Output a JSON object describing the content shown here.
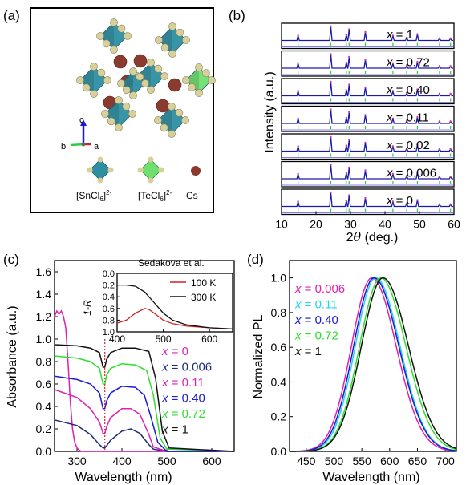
{
  "panels": {
    "a": {
      "label": "(a)",
      "axes": {
        "c": "c",
        "b": "b",
        "a": "a"
      },
      "legend": [
        {
          "label_main": "[SnCl",
          "sub": "6",
          "sup": "2-"
        },
        {
          "label_main": "[TeCl",
          "sub": "6",
          "sup": "2-"
        },
        {
          "label_main": "Cs"
        }
      ],
      "colors": {
        "sn_octahedron": "#2e8fa3",
        "te_octahedron": "#6fe06f",
        "cs": "#8a3a2e",
        "cl": "#d8d09a"
      }
    },
    "b": {
      "label": "(b)",
      "ylabel": "Intensity (a.u.)",
      "xlabel_theta": "θ",
      "xlabel_prefix": "2",
      "xlabel_suffix": " (deg.)"
    },
    "c": {
      "label": "(c)",
      "ylabel": "Absorbance (a.u.)",
      "xlabel": "Wavelength (nm)",
      "inset": {
        "title": "Sedakova et al.",
        "ylabel": "1-R",
        "legend": [
          {
            "label": "100 K",
            "color": "#d62020"
          },
          {
            "label": "300 K",
            "color": "#111111"
          }
        ]
      }
    },
    "d": {
      "label": "(d)",
      "ylabel": "Normalized PL",
      "xlabel": "Wavelength (nm)"
    }
  },
  "chart_data": [
    {
      "panel": "b",
      "type": "line",
      "xlim": [
        10,
        60
      ],
      "xticks": [
        "10",
        "20",
        "30",
        "40",
        "50",
        "60"
      ],
      "series": [
        {
          "name": "x = 1",
          "label_prefix": "x",
          "label_value": " = 1"
        },
        {
          "name": "x = 0.72",
          "label_prefix": "x",
          "label_value": " = 0.72"
        },
        {
          "name": "x = 0.40",
          "label_prefix": "x",
          "label_value": " = 0.40"
        },
        {
          "name": "x = 0.11",
          "label_prefix": "x",
          "label_value": " = 0.11"
        },
        {
          "name": "x = 0.02",
          "label_prefix": "x",
          "label_value": " = 0.02"
        },
        {
          "name": "x = 0.006",
          "label_prefix": "x",
          "label_value": " = 0.006"
        },
        {
          "name": "x = 0",
          "label_prefix": "x",
          "label_value": " = 0"
        }
      ],
      "peaks_2theta": [
        14.8,
        24.3,
        28.8,
        29.6,
        34.3,
        42.3,
        46.3,
        49.4,
        55.8,
        59.0
      ],
      "peak_heights": [
        0.35,
        1.0,
        0.4,
        0.8,
        0.6,
        0.35,
        0.2,
        0.45,
        0.15,
        0.15
      ],
      "colors": {
        "observed": "#d43aa0",
        "calculated": "#1a1aa8",
        "ticks": "#2ecc40",
        "baseline": "#5555dd"
      }
    },
    {
      "panel": "c",
      "type": "line",
      "xlim": [
        250,
        650
      ],
      "ylim": [
        0,
        1.7
      ],
      "xticks": [
        "300",
        "400",
        "500",
        "600"
      ],
      "yticks": [
        "0.0",
        "0.2",
        "0.4",
        "0.6",
        "0.8",
        "1.0",
        "1.2",
        "1.4",
        "1.6"
      ],
      "series": [
        {
          "name": "x = 0",
          "label_prefix": "x",
          "label_value": " = 0",
          "color": "#e020b0",
          "x": [
            250,
            255,
            260,
            265,
            270,
            275,
            280,
            285,
            290,
            295,
            300,
            305,
            310,
            650
          ],
          "y": [
            1.2,
            1.25,
            1.22,
            1.25,
            1.2,
            1.1,
            0.8,
            0.45,
            0.2,
            0.08,
            0.03,
            0.01,
            0.0,
            0.0
          ]
        },
        {
          "name": "x = 0.006",
          "label_prefix": "x",
          "label_value": " = 0.006",
          "color": "#1c2a7a",
          "x": [
            250,
            300,
            330,
            350,
            358,
            362,
            366,
            375,
            400,
            420,
            440,
            460,
            470,
            500,
            650
          ],
          "y": [
            0.28,
            0.23,
            0.15,
            0.06,
            0.03,
            0.03,
            0.05,
            0.1,
            0.18,
            0.2,
            0.16,
            0.06,
            0.02,
            0.0,
            0.0
          ]
        },
        {
          "name": "x = 0.11",
          "label_prefix": "x",
          "label_value": " = 0.11",
          "color": "#e020b0",
          "x": [
            250,
            300,
            330,
            350,
            358,
            362,
            366,
            375,
            400,
            420,
            440,
            460,
            470,
            500,
            650
          ],
          "y": [
            0.55,
            0.48,
            0.38,
            0.26,
            0.16,
            0.16,
            0.22,
            0.3,
            0.38,
            0.38,
            0.33,
            0.15,
            0.04,
            0.0,
            0.0
          ]
        },
        {
          "name": "x = 0.40",
          "label_prefix": "x",
          "label_value": " = 0.40",
          "color": "#1a1ad8",
          "x": [
            250,
            300,
            330,
            350,
            358,
            362,
            366,
            375,
            400,
            430,
            450,
            465,
            480,
            500,
            650
          ],
          "y": [
            0.67,
            0.64,
            0.6,
            0.52,
            0.38,
            0.38,
            0.45,
            0.52,
            0.58,
            0.57,
            0.5,
            0.3,
            0.08,
            0.0,
            0.0
          ]
        },
        {
          "name": "x = 0.72",
          "label_prefix": "x",
          "label_value": " = 0.72",
          "color": "#2ee02e",
          "x": [
            250,
            300,
            330,
            350,
            358,
            362,
            366,
            375,
            400,
            430,
            455,
            470,
            485,
            500,
            650
          ],
          "y": [
            0.85,
            0.83,
            0.8,
            0.74,
            0.6,
            0.6,
            0.68,
            0.74,
            0.78,
            0.77,
            0.72,
            0.5,
            0.12,
            0.02,
            0.0
          ]
        },
        {
          "name": "x = 1",
          "label_prefix": "x",
          "label_value": " = 1",
          "color": "#111111",
          "x": [
            250,
            300,
            330,
            350,
            358,
            362,
            366,
            375,
            400,
            430,
            460,
            475,
            490,
            505,
            650
          ],
          "y": [
            0.95,
            0.94,
            0.92,
            0.88,
            0.75,
            0.75,
            0.82,
            0.88,
            0.92,
            0.92,
            0.89,
            0.65,
            0.18,
            0.03,
            0.0
          ]
        }
      ],
      "marker_line_x": 362
    },
    {
      "panel": "c-inset",
      "type": "line",
      "xlim": [
        400,
        650
      ],
      "ylim": [
        1.0,
        0.0
      ],
      "xticks": [
        "400",
        "500",
        "600"
      ],
      "yticks": [
        "0.0",
        "0.2",
        "0.4",
        "0.6",
        "0.8",
        "1.0"
      ],
      "series": [
        {
          "name": "100 K",
          "color": "#d62020",
          "x": [
            400,
            420,
            440,
            460,
            470,
            480,
            500,
            520,
            550,
            600,
            650
          ],
          "y": [
            0.85,
            0.8,
            0.68,
            0.6,
            0.62,
            0.68,
            0.8,
            0.86,
            0.9,
            0.93,
            0.95
          ]
        },
        {
          "name": "300 K",
          "color": "#111111",
          "x": [
            400,
            420,
            440,
            460,
            480,
            500,
            520,
            550,
            600,
            650
          ],
          "y": [
            0.2,
            0.2,
            0.22,
            0.32,
            0.5,
            0.68,
            0.8,
            0.88,
            0.93,
            0.95
          ]
        }
      ]
    },
    {
      "panel": "d",
      "type": "line",
      "xlim": [
        420,
        720
      ],
      "ylim": [
        0,
        1.1
      ],
      "xticks": [
        "450",
        "500",
        "550",
        "600",
        "650",
        "700"
      ],
      "yticks": [
        "0.0",
        "0.2",
        "0.4",
        "0.6",
        "0.8",
        "1.0"
      ],
      "series": [
        {
          "name": "x = 0.006",
          "label_prefix": "x",
          "label_value": " = 0.006",
          "color": "#e020b0",
          "peak": 568,
          "sigma_left": 52,
          "sigma_right": 62
        },
        {
          "name": "x = 0.11",
          "label_prefix": "x",
          "label_value": " = 0.11",
          "color": "#22d8e8",
          "peak": 575,
          "sigma_left": 52,
          "sigma_right": 62
        },
        {
          "name": "x = 0.40",
          "label_prefix": "x",
          "label_value": " = 0.40",
          "color": "#1a1ad8",
          "peak": 572,
          "sigma_left": 52,
          "sigma_right": 63
        },
        {
          "name": "x = 0.72",
          "label_prefix": "x",
          "label_value": " = 0.72",
          "color": "#2ee02e",
          "peak": 584,
          "sigma_left": 54,
          "sigma_right": 64
        },
        {
          "name": "x = 1",
          "label_prefix": "x",
          "label_value": " = 1",
          "color": "#111111",
          "peak": 588,
          "sigma_left": 55,
          "sigma_right": 65
        }
      ]
    }
  ]
}
